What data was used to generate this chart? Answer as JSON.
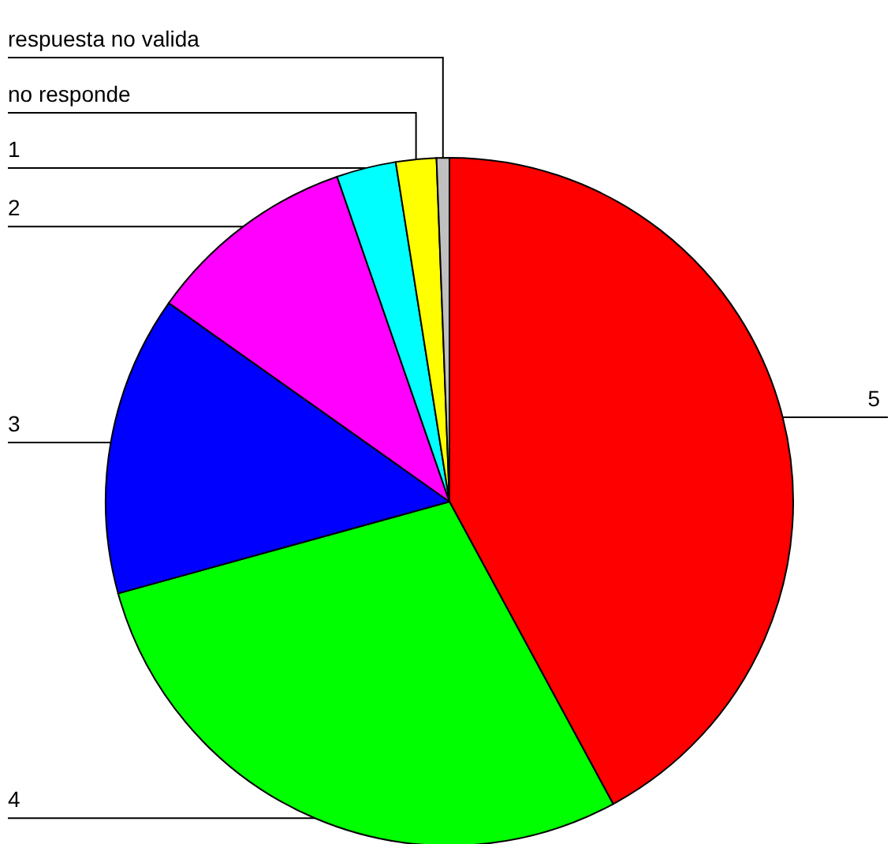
{
  "chart_data": {
    "type": "pie",
    "categories": [
      "5",
      "4",
      "3",
      "2",
      "1",
      "no responde",
      "respuesta no valida"
    ],
    "values": [
      42.1,
      28.6,
      14.1,
      9.9,
      2.8,
      1.9,
      0.6
    ],
    "colors": [
      "#ff0000",
      "#00ff00",
      "#0000ff",
      "#ff00ff",
      "#00ffff",
      "#ffff00",
      "#c0c0c0"
    ]
  }
}
